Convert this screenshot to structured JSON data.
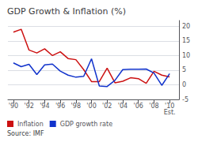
{
  "chart_data": {
    "type": "line",
    "title": "GDP Growth & Inflation (%)",
    "source": "Source: IMF",
    "x": [
      1990,
      1991,
      1992,
      1993,
      1994,
      1995,
      1996,
      1997,
      1998,
      1999,
      2000,
      2001,
      2002,
      2003,
      2004,
      2005,
      2006,
      2007,
      2008,
      2009,
      2010
    ],
    "series": [
      {
        "name": "Inflation",
        "color": "#cc1111",
        "values": [
          18.0,
          19.0,
          11.9,
          10.9,
          12.3,
          10.0,
          11.3,
          9.0,
          8.6,
          5.2,
          1.1,
          1.1,
          5.7,
          0.7,
          1.2,
          2.4,
          2.1,
          0.5,
          4.6,
          3.3,
          2.7
        ]
      },
      {
        "name": "GDP growth rate",
        "color": "#1133cc",
        "values": [
          7.5,
          6.2,
          7.0,
          3.5,
          6.8,
          7.1,
          4.7,
          3.3,
          2.6,
          2.9,
          8.9,
          -0.4,
          -0.6,
          1.5,
          5.2,
          5.3,
          5.3,
          5.4,
          4.0,
          -0.2,
          3.8
        ]
      }
    ],
    "xlim": [
      1989.3,
      2011.2
    ],
    "xticks": [
      {
        "value": 1990,
        "label": "'90"
      },
      {
        "value": 1992,
        "label": "'92"
      },
      {
        "value": 1994,
        "label": "'94"
      },
      {
        "value": 1996,
        "label": "'96"
      },
      {
        "value": 1998,
        "label": "'98"
      },
      {
        "value": 2000,
        "label": "'00"
      },
      {
        "value": 2002,
        "label": "'02"
      },
      {
        "value": 2004,
        "label": "'04"
      },
      {
        "value": 2006,
        "label": "'06"
      },
      {
        "value": 2008,
        "label": "'08"
      },
      {
        "value": 2010,
        "label": "'10"
      }
    ],
    "ylim": [
      -5,
      22
    ],
    "yticks": [
      -5,
      0,
      5,
      10,
      15,
      20
    ],
    "annotations": [
      {
        "text": "Est.",
        "x": 2010
      }
    ],
    "grid": true,
    "legend": "lower left"
  }
}
